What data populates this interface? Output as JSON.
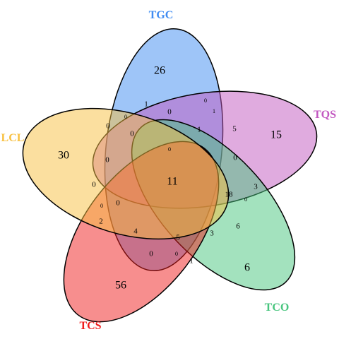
{
  "chart_data": {
    "type": "venn",
    "title": "",
    "sets": [
      {
        "name": "TGC",
        "color": "#3E8BF2"
      },
      {
        "name": "TQS",
        "color": "#C257C0"
      },
      {
        "name": "TCO",
        "color": "#48C57E"
      },
      {
        "name": "TCS",
        "color": "#F01E1E"
      },
      {
        "name": "LCL",
        "color": "#F8C040"
      }
    ],
    "regions": [
      {
        "sets": [
          "TGC"
        ],
        "value": 26
      },
      {
        "sets": [
          "TQS"
        ],
        "value": 15
      },
      {
        "sets": [
          "TCO"
        ],
        "value": 6
      },
      {
        "sets": [
          "TCS"
        ],
        "value": 56
      },
      {
        "sets": [
          "LCL"
        ],
        "value": 30
      },
      {
        "sets": [
          "TGC",
          "TQS",
          "TCO",
          "TCS",
          "LCL"
        ],
        "value": 11
      },
      {
        "sets": [
          "TGC",
          "TQS"
        ],
        "value": 0
      },
      {
        "sets": [
          "TGC",
          "TQS",
          "TCO"
        ],
        "value": 1
      },
      {
        "sets": [
          "TGC",
          "TQS",
          "TCO",
          "LCL"
        ],
        "value": 1
      },
      {
        "sets": [
          "TGC",
          "TQS",
          "LCL"
        ],
        "value": 0
      },
      {
        "sets": [
          "TGC",
          "TCO"
        ],
        "value": 0
      },
      {
        "sets": [
          "TGC",
          "LCL"
        ],
        "value": 0
      },
      {
        "sets": [
          "TGC",
          "TCO",
          "LCL"
        ],
        "value": 0
      },
      {
        "sets": [
          "TGC",
          "TCS",
          "LCL"
        ],
        "value": 0
      },
      {
        "sets": [
          "TGC",
          "TQS",
          "TCS"
        ],
        "value": 0
      },
      {
        "sets": [
          "TQS",
          "TCO"
        ],
        "value": 5
      },
      {
        "sets": [
          "TQS",
          "TCO",
          "LCL"
        ],
        "value": 1
      },
      {
        "sets": [
          "TQS",
          "TCS"
        ],
        "value": 0
      },
      {
        "sets": [
          "TQS",
          "TCO",
          "TCS"
        ],
        "value": 0
      },
      {
        "sets": [
          "TQS",
          "TCO",
          "TCS",
          "LCL"
        ],
        "value": 18
      },
      {
        "sets": [
          "TQS",
          "LCL"
        ],
        "value": 3
      },
      {
        "sets": [
          "TQS",
          "TCS",
          "LCL"
        ],
        "value": 0
      },
      {
        "sets": [
          "TCO",
          "LCL"
        ],
        "value": 6
      },
      {
        "sets": [
          "TCO",
          "TCS",
          "LCL"
        ],
        "value": 3
      },
      {
        "sets": [
          "TCO",
          "TCS"
        ],
        "value": 1
      },
      {
        "sets": [
          "TGC",
          "TCO",
          "TCS"
        ],
        "value": 0
      },
      {
        "sets": [
          "TGC",
          "TCO",
          "TCS",
          "LCL"
        ],
        "value": 5
      },
      {
        "sets": [
          "TCS",
          "LCL"
        ],
        "value": 4
      },
      {
        "sets": [
          "TGC",
          "TCS"
        ],
        "value": 2
      },
      {
        "sets": [
          "TGC",
          "TQS",
          "TCS",
          "LCL"
        ],
        "value": 0
      },
      {
        "sets": [
          "TQS",
          "TCS",
          "LCL",
          "TGC",
          "TCO"
        ],
        "value": 0
      },
      {
        "sets": [
          "TGC",
          "TQS",
          "TCO",
          "TCS"
        ],
        "value": 0
      }
    ]
  }
}
